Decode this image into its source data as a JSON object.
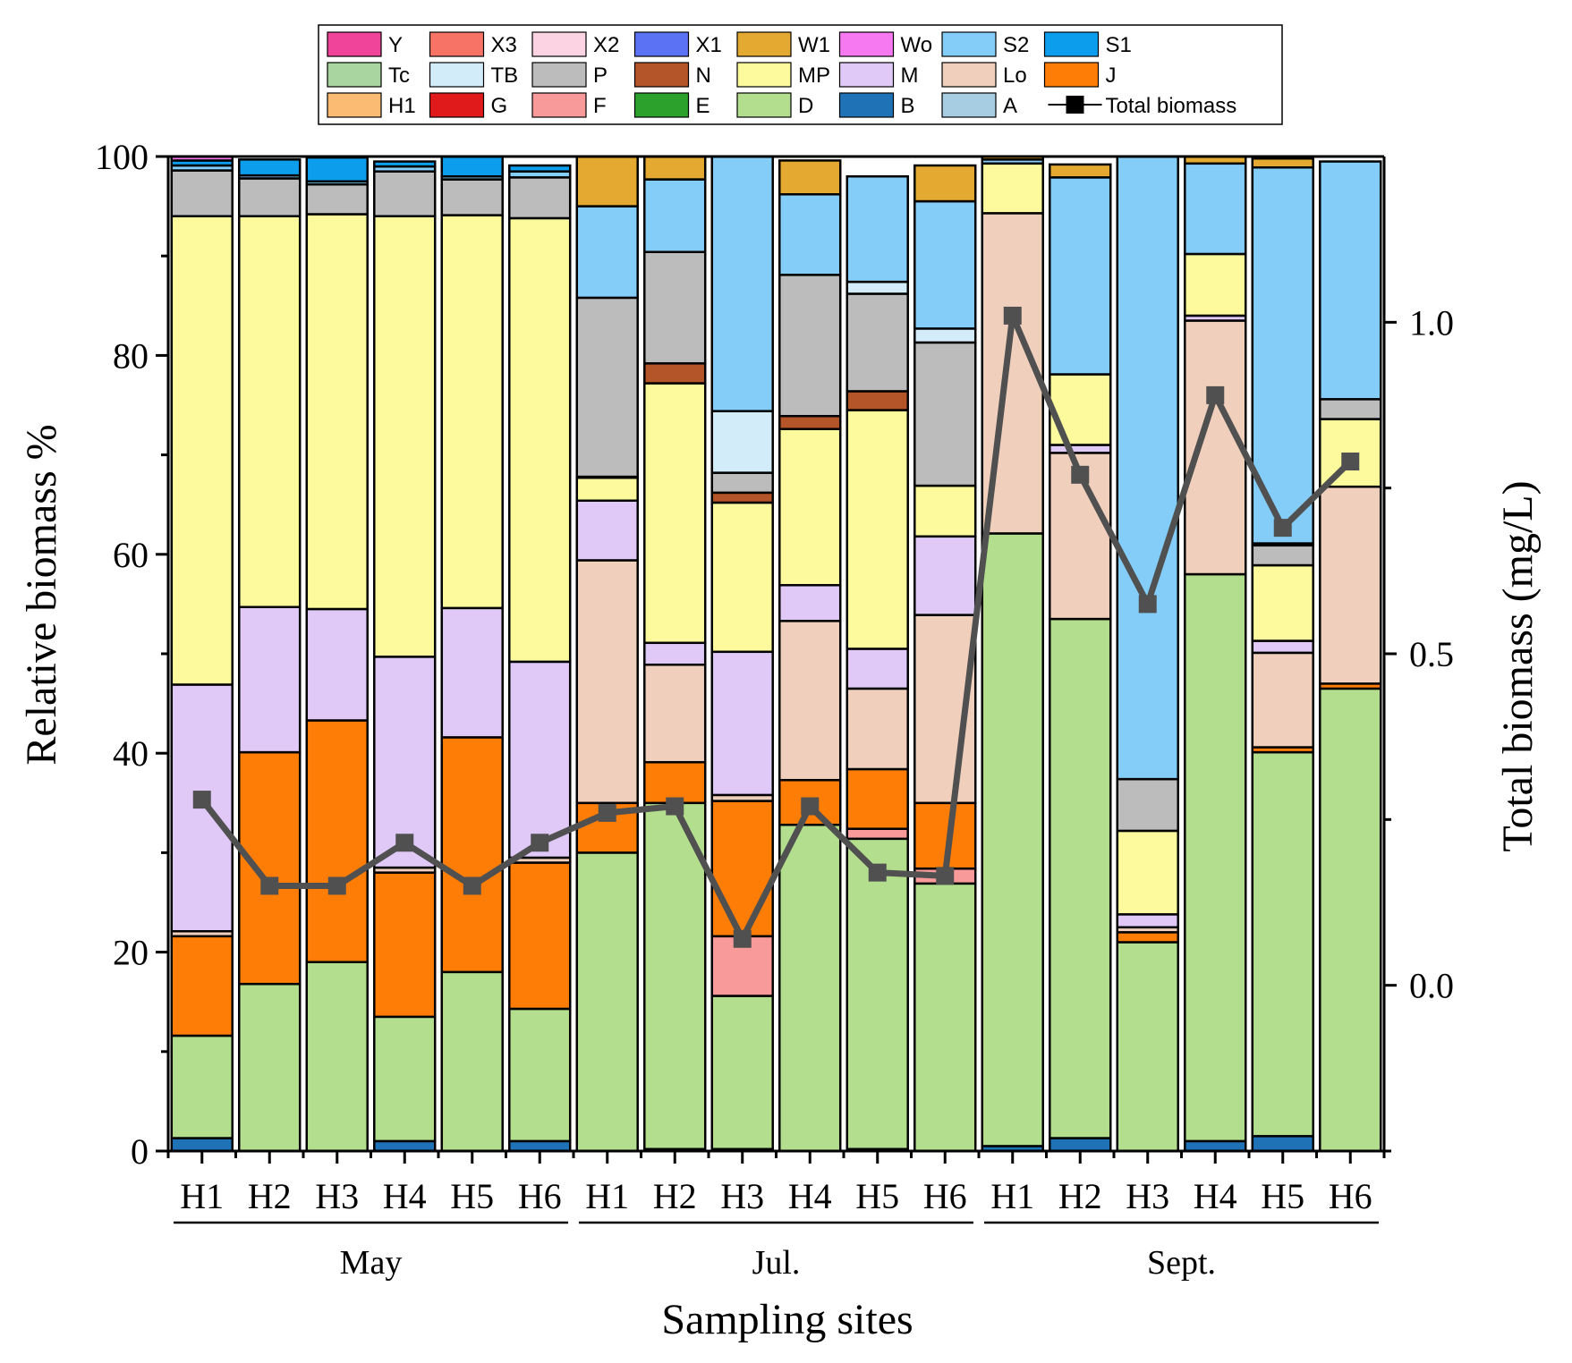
{
  "chart_data": {
    "type": "bar",
    "stacked": true,
    "title": "",
    "xlabel": "Sampling sites",
    "ylabel": "Relative biomass %",
    "y2label": "Total biomass (mg/L)",
    "ylim": [
      0,
      100
    ],
    "y2lim": [
      -0.25,
      1.25
    ],
    "yticks": [
      "0",
      "20",
      "40",
      "60",
      "80",
      "100"
    ],
    "y2ticks": [
      "0.0",
      "0.5",
      "1.0"
    ],
    "sites": [
      "H1",
      "H2",
      "H3",
      "H4",
      "H5",
      "H6",
      "H1",
      "H2",
      "H3",
      "H4",
      "H5",
      "H6",
      "H1",
      "H2",
      "H3",
      "H4",
      "H5",
      "H6"
    ],
    "months": [
      {
        "label": "May",
        "first_bar": 0,
        "last_bar": 5
      },
      {
        "label": "Jul.",
        "first_bar": 6,
        "last_bar": 11
      },
      {
        "label": "Sept.",
        "first_bar": 12,
        "last_bar": 17
      }
    ],
    "legend": [
      {
        "key": "Y",
        "color": "#f0449a"
      },
      {
        "key": "X3",
        "color": "#f77365"
      },
      {
        "key": "X2",
        "color": "#fcd3e3"
      },
      {
        "key": "X1",
        "color": "#5a72f3"
      },
      {
        "key": "W1",
        "color": "#e3a930"
      },
      {
        "key": "Wo",
        "color": "#f779f2"
      },
      {
        "key": "S2",
        "color": "#84cdf8"
      },
      {
        "key": "S1",
        "color": "#0d9ded"
      },
      {
        "key": "Tc",
        "color": "#a9d5a0"
      },
      {
        "key": "TB",
        "color": "#d3ecf9"
      },
      {
        "key": "P",
        "color": "#bcbcbc"
      },
      {
        "key": "N",
        "color": "#b35528"
      },
      {
        "key": "MP",
        "color": "#fcfa9c"
      },
      {
        "key": "M",
        "color": "#e0c8f7"
      },
      {
        "key": "Lo",
        "color": "#f0d0bd"
      },
      {
        "key": "J",
        "color": "#fd7d07"
      },
      {
        "key": "H1",
        "color": "#fbbb72"
      },
      {
        "key": "G",
        "color": "#e01a1a"
      },
      {
        "key": "F",
        "color": "#f99a9a"
      },
      {
        "key": "E",
        "color": "#2ca22c"
      },
      {
        "key": "D",
        "color": "#b3de8d"
      },
      {
        "key": "B",
        "color": "#1e72b5"
      },
      {
        "key": "A",
        "color": "#a7cde2"
      },
      {
        "key": "Total biomass",
        "color": "#505050",
        "line": true
      }
    ],
    "stack_order": [
      "B",
      "D",
      "F",
      "J",
      "Lo",
      "M",
      "MP",
      "N",
      "P",
      "TB",
      "S2",
      "W1",
      "S1",
      "Wo"
    ],
    "series": [
      {
        "name": "B",
        "values": [
          1.3,
          0,
          0,
          1,
          0,
          1,
          0,
          0.2,
          0.2,
          0,
          0.2,
          0,
          0.5,
          1.3,
          0,
          1,
          1.5,
          0
        ]
      },
      {
        "name": "D",
        "values": [
          10.3,
          16.8,
          19,
          12.5,
          18,
          13.3,
          30,
          34.8,
          15.4,
          32.8,
          31.2,
          26.9,
          61.6,
          52.2,
          21,
          57,
          38.6,
          46.5
        ]
      },
      {
        "name": "F",
        "values": [
          0,
          0,
          0,
          0,
          0,
          0,
          0,
          0,
          6,
          0,
          1,
          1.5,
          0,
          0,
          0,
          0,
          0,
          0
        ]
      },
      {
        "name": "J",
        "values": [
          10,
          23.3,
          24.3,
          14.5,
          23.6,
          14.7,
          5,
          4.1,
          13.6,
          4.5,
          6,
          6.6,
          0,
          0,
          1,
          0,
          0.5,
          0.5
        ]
      },
      {
        "name": "Lo",
        "values": [
          0.5,
          0,
          0,
          0.5,
          0,
          0.5,
          24.4,
          9.8,
          0.6,
          16,
          8.1,
          18.9,
          32.2,
          16.7,
          0.5,
          25.5,
          9.5,
          19.8
        ]
      },
      {
        "name": "M",
        "values": [
          24.8,
          14.6,
          11.2,
          21.2,
          13,
          19.7,
          6,
          2.2,
          14.4,
          3.6,
          4,
          7.9,
          0,
          0.8,
          1.3,
          0.5,
          1.2,
          0
        ]
      },
      {
        "name": "MP",
        "values": [
          47.1,
          39.3,
          39.7,
          44.3,
          39.5,
          44.6,
          2.3,
          26.1,
          15,
          15.7,
          24,
          5.1,
          5,
          7.1,
          8.4,
          6.2,
          7.6,
          6.8
        ]
      },
      {
        "name": "N",
        "values": [
          0,
          0,
          0,
          0,
          0,
          0,
          0.1,
          2,
          1,
          1.3,
          1.9,
          0,
          0,
          0,
          0,
          0,
          0,
          0
        ]
      },
      {
        "name": "P",
        "values": [
          4.6,
          3.8,
          3,
          4.5,
          3.6,
          4.1,
          18,
          11.2,
          2,
          14.2,
          9.8,
          14.4,
          0,
          0,
          5.2,
          0,
          2,
          2
        ]
      },
      {
        "name": "TB",
        "values": [
          0,
          0,
          0,
          0,
          0,
          0,
          0,
          0,
          6.2,
          0,
          1.2,
          1.4,
          0,
          0,
          0,
          0,
          0.2,
          0
        ]
      },
      {
        "name": "S2",
        "values": [
          0.5,
          0.3,
          0.3,
          0.5,
          0.3,
          0.6,
          9.2,
          7.3,
          25.6,
          8.1,
          10.6,
          12.8,
          0.4,
          19.8,
          62.6,
          9.1,
          37.8,
          23.9
        ]
      },
      {
        "name": "W1",
        "values": [
          0,
          0,
          0,
          0,
          0,
          0,
          5,
          2.3,
          0,
          3.4,
          0,
          3.6,
          0.3,
          1.3,
          0,
          0.7,
          0.9,
          0
        ]
      },
      {
        "name": "S1",
        "values": [
          0.5,
          1.6,
          2.4,
          0.5,
          2,
          0.6,
          0,
          0,
          0,
          0,
          0,
          0,
          0,
          0,
          0,
          0,
          0,
          0
        ]
      },
      {
        "name": "Wo",
        "values": [
          0.4,
          0,
          0,
          0,
          0,
          0,
          0,
          0,
          0,
          0,
          0,
          0,
          0,
          0,
          0,
          0,
          0,
          0
        ]
      }
    ],
    "total_biomass": [
      0.28,
      0.15,
      0.15,
      0.215,
      0.15,
      0.215,
      0.26,
      0.27,
      0.07,
      0.27,
      0.17,
      0.165,
      1.01,
      0.77,
      0.575,
      0.89,
      0.69,
      0.79
    ]
  }
}
